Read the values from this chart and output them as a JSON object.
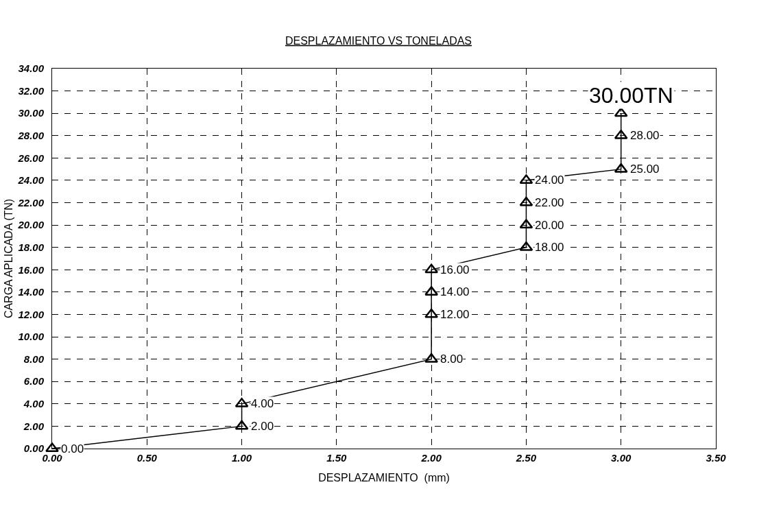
{
  "chart_data": {
    "type": "line",
    "title": "DESPLAZAMIENTO VS TONELADAS",
    "xlabel": "DESPLAZAMIENTO  (mm)",
    "ylabel": "CARGA APLICADA (TN)",
    "x": [
      0,
      1,
      1,
      2,
      2,
      2,
      2,
      2.5,
      2.5,
      2.5,
      2.5,
      3,
      3,
      3
    ],
    "values": [
      0,
      2,
      4,
      8,
      12,
      14,
      16,
      18,
      20,
      22,
      24,
      25,
      28,
      30
    ],
    "value_labels": [
      "0.00",
      "2.00",
      "4.00",
      "8.00",
      "12.00",
      "14.00",
      "16.00",
      "18.00",
      "20.00",
      "22.00",
      "24.00",
      "25.00",
      "28.00",
      null
    ],
    "annotations": [
      {
        "text": "30.00TN",
        "x": 3,
        "y": 30
      }
    ],
    "color": "#000000",
    "marker": "triangle",
    "line_style": "solid",
    "grid": true,
    "legend": false,
    "xlim": [
      0,
      3.5
    ],
    "xticks": [
      {
        "value": 0,
        "label": "0.00"
      },
      {
        "value": 0.5,
        "label": "0.50"
      },
      {
        "value": 1,
        "label": "1.00"
      },
      {
        "value": 1.5,
        "label": "1.50"
      },
      {
        "value": 2,
        "label": "2.00"
      },
      {
        "value": 2.5,
        "label": "2.50"
      },
      {
        "value": 3,
        "label": "3.00"
      },
      {
        "value": 3.5,
        "label": "3.50"
      }
    ],
    "ylim": [
      0,
      34
    ],
    "yticks": [
      {
        "value": 0,
        "label": "0.00"
      },
      {
        "value": 2,
        "label": "2.00"
      },
      {
        "value": 4,
        "label": "4.00"
      },
      {
        "value": 6,
        "label": "6.00"
      },
      {
        "value": 8,
        "label": "8.00"
      },
      {
        "value": 10,
        "label": "10.00"
      },
      {
        "value": 12,
        "label": "12.00"
      },
      {
        "value": 14,
        "label": "14.00"
      },
      {
        "value": 16,
        "label": "16.00"
      },
      {
        "value": 18,
        "label": "18.00"
      },
      {
        "value": 20,
        "label": "20.00"
      },
      {
        "value": 22,
        "label": "22.00"
      },
      {
        "value": 24,
        "label": "24.00"
      },
      {
        "value": 26,
        "label": "26.00"
      },
      {
        "value": 28,
        "label": "28.00"
      },
      {
        "value": 30,
        "label": "30.00"
      },
      {
        "value": 32,
        "label": "32.00"
      },
      {
        "value": 34,
        "label": "34.00"
      }
    ]
  }
}
